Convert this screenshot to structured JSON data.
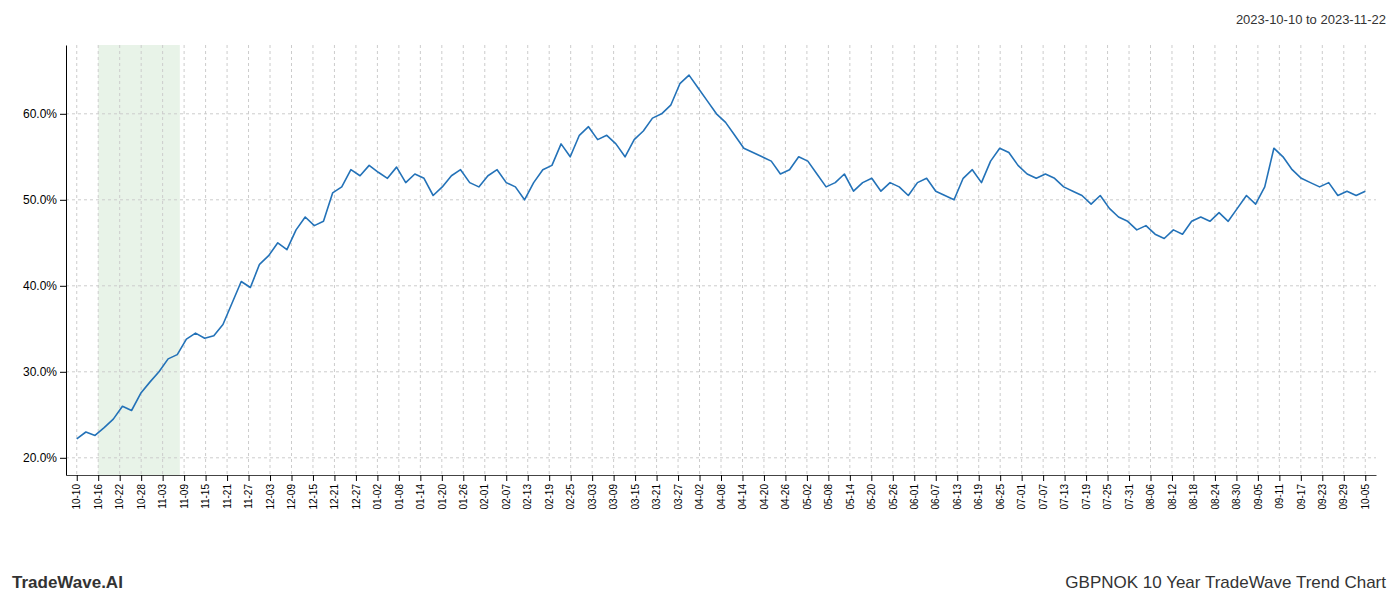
{
  "chart_data": {
    "type": "line",
    "title": "GBPNOK 10 Year TradeWave Trend Chart",
    "subtitle": "2023-10-10 to 2023-11-22",
    "annotations": [
      "TradeWave.AI"
    ],
    "color": "#2372b8",
    "grid": true,
    "highlight": {
      "x": [
        1.0,
        4.8
      ],
      "color": "#d6ead6"
    },
    "xlim": [
      -0.5,
      60.5
    ],
    "xticks": [
      {
        "value": 0,
        "label": "10-10"
      },
      {
        "value": 1,
        "label": "10-16"
      },
      {
        "value": 2,
        "label": "10-22"
      },
      {
        "value": 3,
        "label": "10-28"
      },
      {
        "value": 4,
        "label": "11-03"
      },
      {
        "value": 5,
        "label": "11-09"
      },
      {
        "value": 6,
        "label": "11-15"
      },
      {
        "value": 7,
        "label": "11-21"
      },
      {
        "value": 8,
        "label": "11-27"
      },
      {
        "value": 9,
        "label": "12-03"
      },
      {
        "value": 10,
        "label": "12-09"
      },
      {
        "value": 11,
        "label": "12-15"
      },
      {
        "value": 12,
        "label": "12-21"
      },
      {
        "value": 13,
        "label": "12-27"
      },
      {
        "value": 14,
        "label": "01-02"
      },
      {
        "value": 15,
        "label": "01-08"
      },
      {
        "value": 16,
        "label": "01-14"
      },
      {
        "value": 17,
        "label": "01-20"
      },
      {
        "value": 18,
        "label": "01-26"
      },
      {
        "value": 19,
        "label": "02-01"
      },
      {
        "value": 20,
        "label": "02-07"
      },
      {
        "value": 21,
        "label": "02-13"
      },
      {
        "value": 22,
        "label": "02-19"
      },
      {
        "value": 23,
        "label": "02-25"
      },
      {
        "value": 24,
        "label": "03-03"
      },
      {
        "value": 25,
        "label": "03-09"
      },
      {
        "value": 26,
        "label": "03-15"
      },
      {
        "value": 27,
        "label": "03-21"
      },
      {
        "value": 28,
        "label": "03-27"
      },
      {
        "value": 29,
        "label": "04-02"
      },
      {
        "value": 30,
        "label": "04-08"
      },
      {
        "value": 31,
        "label": "04-14"
      },
      {
        "value": 32,
        "label": "04-20"
      },
      {
        "value": 33,
        "label": "04-26"
      },
      {
        "value": 34,
        "label": "05-02"
      },
      {
        "value": 35,
        "label": "05-08"
      },
      {
        "value": 36,
        "label": "05-14"
      },
      {
        "value": 37,
        "label": "05-20"
      },
      {
        "value": 38,
        "label": "05-26"
      },
      {
        "value": 39,
        "label": "06-01"
      },
      {
        "value": 40,
        "label": "06-07"
      },
      {
        "value": 41,
        "label": "06-13"
      },
      {
        "value": 42,
        "label": "06-19"
      },
      {
        "value": 43,
        "label": "06-25"
      },
      {
        "value": 44,
        "label": "07-01"
      },
      {
        "value": 45,
        "label": "07-07"
      },
      {
        "value": 46,
        "label": "07-13"
      },
      {
        "value": 47,
        "label": "07-19"
      },
      {
        "value": 48,
        "label": "07-25"
      },
      {
        "value": 49,
        "label": "07-31"
      },
      {
        "value": 50,
        "label": "08-06"
      },
      {
        "value": 51,
        "label": "08-12"
      },
      {
        "value": 52,
        "label": "08-18"
      },
      {
        "value": 53,
        "label": "08-24"
      },
      {
        "value": 54,
        "label": "08-30"
      },
      {
        "value": 55,
        "label": "09-05"
      },
      {
        "value": 56,
        "label": "09-11"
      },
      {
        "value": 57,
        "label": "09-17"
      },
      {
        "value": 58,
        "label": "09-23"
      },
      {
        "value": 59,
        "label": "09-29"
      },
      {
        "value": 60,
        "label": "10-05"
      }
    ],
    "ylim": [
      18,
      68
    ],
    "yticks": [
      {
        "value": 20,
        "label": "20.0%"
      },
      {
        "value": 30,
        "label": "30.0%"
      },
      {
        "value": 40,
        "label": "40.0%"
      },
      {
        "value": 50,
        "label": "50.0%"
      },
      {
        "value": 60,
        "label": "60.0%"
      }
    ],
    "x": [
      0,
      0.4255,
      0.8511,
      1.2766,
      1.7021,
      2.1277,
      2.5532,
      2.9787,
      3.4043,
      3.8298,
      4.2553,
      4.6809,
      5.1064,
      5.5319,
      5.9574,
      6.383,
      6.8085,
      7.234,
      7.6596,
      8.0851,
      8.5106,
      8.9362,
      9.3617,
      9.7872,
      10.2128,
      10.6383,
      11.0638,
      11.4894,
      11.9149,
      12.3404,
      12.766,
      13.1915,
      13.617,
      14.0426,
      14.4681,
      14.8936,
      15.3191,
      15.7447,
      16.1702,
      16.5957,
      17.0213,
      17.4468,
      17.8723,
      18.2979,
      18.7234,
      19.1489,
      19.5745,
      20,
      20.4255,
      20.8511,
      21.2766,
      21.7021,
      22.1277,
      22.5532,
      22.9787,
      23.4043,
      23.8298,
      24.2553,
      24.6809,
      25.1064,
      25.5319,
      25.9574,
      26.383,
      26.8085,
      27.234,
      27.6596,
      28.0851,
      28.5106,
      28.9362,
      29.3617,
      29.7872,
      30.2128,
      30.6383,
      31.0638,
      31.4894,
      31.9149,
      32.3404,
      32.766,
      33.1915,
      33.617,
      34.0426,
      34.4681,
      34.8936,
      35.3191,
      35.7447,
      36.1702,
      36.5957,
      37.0213,
      37.4468,
      37.8723,
      38.2979,
      38.7234,
      39.1489,
      39.5745,
      40,
      40.4255,
      40.8511,
      41.2766,
      41.7021,
      42.1277,
      42.5532,
      42.9787,
      43.4043,
      43.8298,
      44.2553,
      44.6809,
      45.1064,
      45.5319,
      45.9574,
      46.383,
      46.8085,
      47.234,
      47.6596,
      48.0851,
      48.5106,
      48.9362,
      49.3617,
      49.7872,
      50.2128,
      50.6383,
      51.0638,
      51.4894,
      51.9149,
      52.3404,
      52.766,
      53.1915,
      53.617,
      54.0426,
      54.4681,
      54.8936,
      55.3191,
      55.7447,
      56.1702,
      56.5957,
      57.0213,
      57.4468,
      57.8723,
      58.2979,
      58.7234,
      59.1489,
      59.5745,
      60
    ],
    "values": [
      22.2,
      23.0,
      22.6,
      23.5,
      24.5,
      26.0,
      25.5,
      27.5,
      28.8,
      30.0,
      31.5,
      32.0,
      33.8,
      34.5,
      33.9,
      34.2,
      35.5,
      38.0,
      40.5,
      39.8,
      42.5,
      43.5,
      45.0,
      44.2,
      46.5,
      48.0,
      47.0,
      47.5,
      50.8,
      51.5,
      53.5,
      52.8,
      54.0,
      53.2,
      52.5,
      53.8,
      52.0,
      53.0,
      52.5,
      50.5,
      51.5,
      52.8,
      53.5,
      52.0,
      51.5,
      52.8,
      53.5,
      52.0,
      51.5,
      50.0,
      52.0,
      53.5,
      54.0,
      56.5,
      55.0,
      57.5,
      58.5,
      57.0,
      57.5,
      56.5,
      55.0,
      57.0,
      58.0,
      59.5,
      60.0,
      61.0,
      63.5,
      64.5,
      63.0,
      61.5,
      60.0,
      59.0,
      57.5,
      56.0,
      55.5,
      55.0,
      54.5,
      53.0,
      53.5,
      55.0,
      54.5,
      53.0,
      51.5,
      52.0,
      53.0,
      51.0,
      52.0,
      52.5,
      51.0,
      52.0,
      51.5,
      50.5,
      52.0,
      52.5,
      51.0,
      50.5,
      50.0,
      52.5,
      53.5,
      52.0,
      54.5,
      56.0,
      55.5,
      54.0,
      53.0,
      52.5,
      53.0,
      52.5,
      51.5,
      51.0,
      50.5,
      49.5,
      50.5,
      49.0,
      48.0,
      47.5,
      46.5,
      47.0,
      46.0,
      45.5,
      46.5,
      46.0,
      47.5,
      48.0,
      47.5,
      48.5,
      47.5,
      49.0,
      50.5,
      49.5,
      51.5,
      56.0,
      55.0,
      53.5,
      52.5,
      52.0,
      51.5,
      52.0,
      50.5,
      51.0,
      50.5,
      51.0
    ]
  }
}
